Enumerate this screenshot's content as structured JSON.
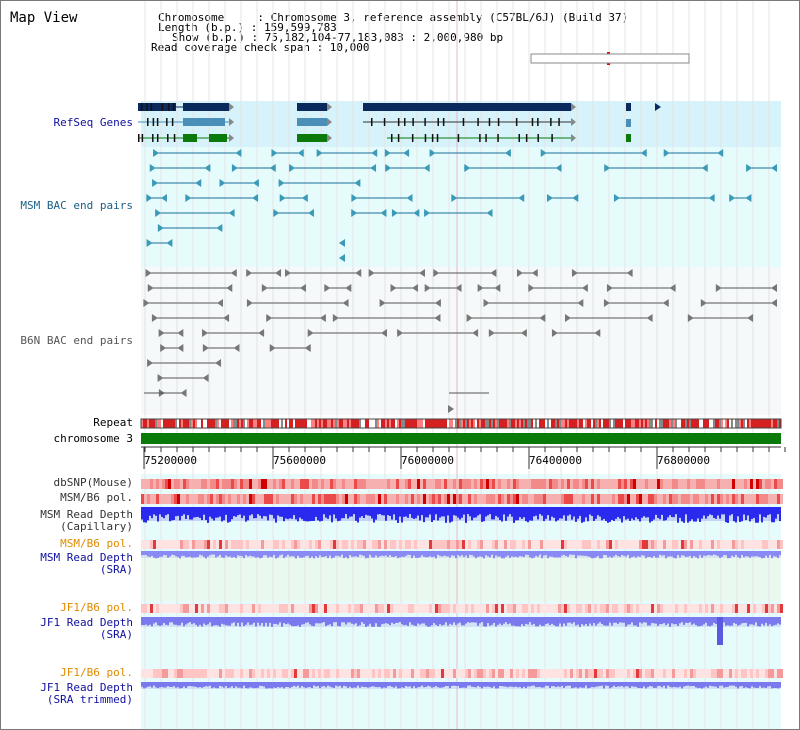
{
  "header": {
    "title": "Map View",
    "info_lines": [
      "Chromosome     : Chromosome 3, reference assembly (C57BL/6J) (Build 37)",
      "Length (b.p.) : 159,599,783",
      "Show (b.p.) : 75,182,104-77,183,083 : 2,000,980 bp",
      "Read coverage check span : 10,000"
    ]
  },
  "tracks": {
    "refseq": "RefSeq Genes",
    "msm_bac": "MSM BAC end pairs",
    "b6n_bac": "B6N BAC end pairs",
    "repeat": "Repeat",
    "chromosome": "chromosome 3",
    "dbsnp": "dbSNP(Mouse)",
    "msm_b6_pol_1": "MSM/B6 pol.",
    "msm_depth_cap_1": "MSM Read Depth",
    "msm_depth_cap_2": "(Capillary)",
    "msm_b6_pol_2": "MSM/B6 pol.",
    "msm_depth_sra_1": "MSM Read Depth",
    "msm_depth_sra_2": "(SRA)",
    "jf1_b6_pol_1": "JF1/B6 pol.",
    "jf1_depth_sra_1": "JF1 Read Depth",
    "jf1_depth_sra_2": "(SRA)",
    "jf1_b6_pol_2": "JF1/B6 pol.",
    "jf1_depth_trim_1": "JF1 Read Depth",
    "jf1_depth_trim_2": "(SRA trimmed)"
  },
  "axis": {
    "ticks": [
      "75200000",
      "75600000",
      "76000000",
      "76400000",
      "76800000"
    ]
  },
  "colors": {
    "refseq_dark": "#0a2a5e",
    "refseq_mid": "#4a8fb8",
    "refseq_green": "#0a7a0a",
    "msm_label": "#1a5e88",
    "b6n_label": "#555555",
    "label_blue": "#1010a0",
    "label_orange": "#e08a00",
    "chrom_green": "#0a7a0a",
    "bg_cyan": "#e6fbfb"
  }
}
